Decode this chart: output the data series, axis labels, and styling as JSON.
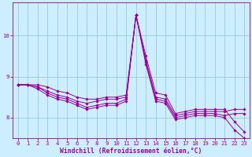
{
  "xlabel": "Windchill (Refroidissement éolien,°C)",
  "background_color": "#cceeff",
  "grid_color": "#99cccc",
  "line_color": "#990099",
  "x_hours": [
    0,
    1,
    2,
    3,
    4,
    5,
    6,
    7,
    8,
    9,
    10,
    11,
    12,
    13,
    14,
    15,
    16,
    17,
    18,
    19,
    20,
    21,
    22,
    23
  ],
  "series": [
    [
      8.8,
      8.8,
      8.8,
      8.75,
      8.65,
      8.6,
      8.5,
      8.45,
      8.45,
      8.5,
      8.5,
      8.55,
      10.5,
      9.5,
      8.6,
      8.55,
      8.1,
      8.15,
      8.2,
      8.2,
      8.2,
      8.2,
      7.9,
      7.65
    ],
    [
      8.8,
      8.8,
      8.75,
      8.65,
      8.55,
      8.5,
      8.4,
      8.35,
      8.4,
      8.45,
      8.45,
      8.5,
      10.5,
      9.4,
      8.5,
      8.45,
      8.05,
      8.1,
      8.15,
      8.15,
      8.15,
      8.15,
      8.2,
      8.2
    ],
    [
      8.8,
      8.8,
      8.75,
      8.6,
      8.5,
      8.45,
      8.35,
      8.25,
      8.3,
      8.35,
      8.35,
      8.45,
      10.5,
      9.35,
      8.45,
      8.4,
      8.0,
      8.05,
      8.1,
      8.1,
      8.1,
      8.05,
      8.1,
      8.1
    ],
    [
      8.8,
      8.8,
      8.7,
      8.55,
      8.45,
      8.4,
      8.3,
      8.2,
      8.25,
      8.3,
      8.3,
      8.4,
      10.5,
      9.3,
      8.4,
      8.35,
      7.95,
      8.0,
      8.05,
      8.05,
      8.05,
      8.0,
      7.7,
      7.5
    ]
  ],
  "ylim": [
    7.5,
    10.8
  ],
  "yticks": [
    8,
    9,
    10
  ],
  "xlim": [
    -0.5,
    23.5
  ],
  "xticks": [
    0,
    1,
    2,
    3,
    4,
    5,
    6,
    7,
    8,
    9,
    10,
    11,
    12,
    13,
    14,
    15,
    16,
    17,
    18,
    19,
    20,
    21,
    22,
    23
  ],
  "tick_fontsize": 5.2,
  "label_fontsize": 5.8,
  "markersize": 1.8,
  "linewidth": 0.7
}
